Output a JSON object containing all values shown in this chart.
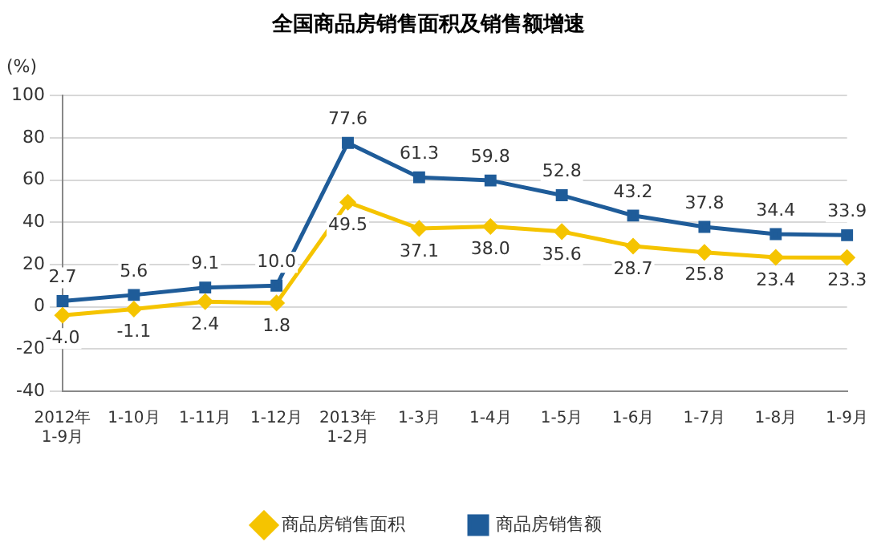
{
  "chart_data": {
    "type": "line",
    "title": "全国商品房销售面积及销售额增速",
    "ylabel": "(%)",
    "categories": [
      "2012年\n1-9月",
      "1-10月",
      "1-11月",
      "1-12月",
      "2013年\n1-2月",
      "1-3月",
      "1-4月",
      "1-5月",
      "1-6月",
      "1-7月",
      "1-8月",
      "1-9月"
    ],
    "series": [
      {
        "name": "商品房销售面积",
        "color": "#f5c400",
        "marker": "diamond",
        "values": [
          -4.0,
          -1.1,
          2.4,
          1.8,
          49.5,
          37.1,
          38.0,
          35.6,
          28.7,
          25.8,
          23.4,
          23.3
        ],
        "value_labels": [
          "-4.0",
          "-1.1",
          "2.4",
          "1.8",
          "49.5",
          "37.1",
          "38.0",
          "35.6",
          "28.7",
          "25.8",
          "23.4",
          "23.3"
        ]
      },
      {
        "name": "商品房销售额",
        "color": "#1f5c99",
        "marker": "square",
        "values": [
          2.7,
          5.6,
          9.1,
          10.0,
          77.6,
          61.3,
          59.8,
          52.8,
          43.2,
          37.8,
          34.4,
          33.9
        ],
        "value_labels": [
          "2.7",
          "5.6",
          "9.1",
          "10.0",
          "77.6",
          "61.3",
          "59.8",
          "52.8",
          "43.2",
          "37.8",
          "34.4",
          "33.9"
        ]
      }
    ],
    "ylim": [
      -40,
      100
    ],
    "yticks": [
      -40,
      -20,
      0,
      20,
      40,
      60,
      80,
      100
    ],
    "grid": "y",
    "legend": "bottom"
  }
}
